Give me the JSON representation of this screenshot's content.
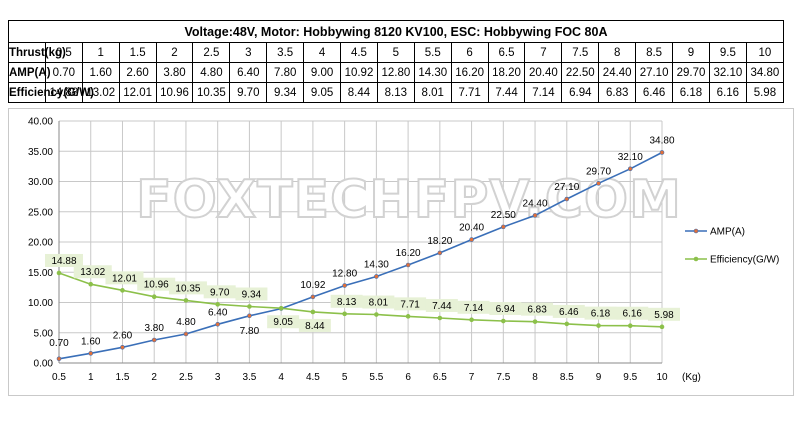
{
  "table": {
    "title": "Voltage:48V, Motor: Hobbywing 8120 KV100, ESC: Hobbywing FOC 80A",
    "rows": [
      {
        "label": "Thrust(kg)",
        "values": [
          "0.5",
          "1",
          "1.5",
          "2",
          "2.5",
          "3",
          "3.5",
          "4",
          "4.5",
          "5",
          "5.5",
          "6",
          "6.5",
          "7",
          "7.5",
          "8",
          "8.5",
          "9",
          "9.5",
          "10"
        ]
      },
      {
        "label": "AMP(A)",
        "values": [
          "0.70",
          "1.60",
          "2.60",
          "3.80",
          "4.80",
          "6.40",
          "7.80",
          "9.00",
          "10.92",
          "12.80",
          "14.30",
          "16.20",
          "18.20",
          "20.40",
          "22.50",
          "24.40",
          "27.10",
          "29.70",
          "32.10",
          "34.80"
        ]
      },
      {
        "label": "Efficiency(G/W)",
        "values": [
          "14.88",
          "13.02",
          "12.01",
          "10.96",
          "10.35",
          "9.70",
          "9.34",
          "9.05",
          "8.44",
          "8.13",
          "8.01",
          "7.71",
          "7.44",
          "7.14",
          "6.94",
          "6.83",
          "6.46",
          "6.18",
          "6.16",
          "5.98"
        ]
      }
    ]
  },
  "watermark": "FOXTECHFPV.COM",
  "chart_data": {
    "type": "line",
    "title": "",
    "xlabel": "(Kg)",
    "ylabel": "",
    "x": [
      0.5,
      1,
      1.5,
      2,
      2.5,
      3,
      3.5,
      4,
      4.5,
      5,
      5.5,
      6,
      6.5,
      7,
      7.5,
      8,
      8.5,
      9,
      9.5,
      10
    ],
    "x_tick_labels": [
      "0.5",
      "1",
      "1.5",
      "2",
      "2.5",
      "3",
      "3.5",
      "4",
      "4.5",
      "5",
      "5.5",
      "6",
      "6.5",
      "7",
      "7.5",
      "8",
      "8.5",
      "9",
      "9.5",
      "10"
    ],
    "xlim": [
      0.5,
      10
    ],
    "ylim": [
      0,
      40
    ],
    "y_ticks": [
      0,
      5,
      10,
      15,
      20,
      25,
      30,
      35,
      40
    ],
    "y_tick_labels": [
      "0.00",
      "5.00",
      "10.00",
      "15.00",
      "20.00",
      "25.00",
      "30.00",
      "35.00",
      "40.00"
    ],
    "grid": true,
    "legend_position": "right",
    "series": [
      {
        "name": "AMP(A)",
        "color": "#3a6fb8",
        "marker_color": "#e0703a",
        "label_style": "plain",
        "values": [
          0.7,
          1.6,
          2.6,
          3.8,
          4.8,
          6.4,
          7.8,
          9.0,
          10.92,
          12.8,
          14.3,
          16.2,
          18.2,
          20.4,
          22.5,
          24.4,
          27.1,
          29.7,
          32.1,
          34.8
        ],
        "labels": [
          "0.70",
          "1.60",
          "2.60",
          "3.80",
          "4.80",
          "6.40",
          "7.80",
          "9.00",
          "10.92",
          "12.80",
          "14.30",
          "16.20",
          "18.20",
          "20.40",
          "22.50",
          "24.40",
          "27.10",
          "29.70",
          "32.10",
          "34.80"
        ]
      },
      {
        "name": "Efficiency(G/W)",
        "color": "#8cc04a",
        "marker_color": "#8cc04a",
        "label_style": "boxed",
        "label_bg": "#e7f1d6",
        "values": [
          14.88,
          13.02,
          12.01,
          10.96,
          10.35,
          9.7,
          9.34,
          9.05,
          8.44,
          8.13,
          8.01,
          7.71,
          7.44,
          7.14,
          6.94,
          6.83,
          6.46,
          6.18,
          6.16,
          5.98
        ],
        "labels": [
          "14.88",
          "13.02",
          "12.01",
          "10.96",
          "10.35",
          "9.70",
          "9.34",
          "9.05",
          "8.44",
          "8.13",
          "8.01",
          "7.71",
          "7.44",
          "7.14",
          "6.94",
          "6.83",
          "6.46",
          "6.18",
          "6.16",
          "5.98"
        ]
      }
    ]
  }
}
